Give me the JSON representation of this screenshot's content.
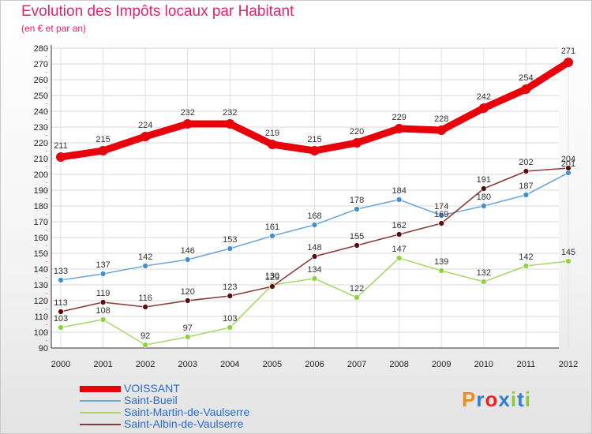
{
  "header": {
    "title": "Evolution des Impôts locaux par Habitant",
    "subtitle": "(en € et par an)"
  },
  "logo": {
    "text": "Proxiti",
    "letter_colors": [
      "#f08a1c",
      "#2f7fd8",
      "#e82525",
      "#2f7fd8",
      "#8cc63f",
      "#2f7fd8",
      "#8cc63f"
    ]
  },
  "chart_data": {
    "type": "line",
    "title": "Evolution des Impôts locaux par Habitant",
    "subtitle": "(en € et par an)",
    "xlabel": "",
    "ylabel": "",
    "x": [
      "2000",
      "2001",
      "2002",
      "2003",
      "2004",
      "2005",
      "2006",
      "2007",
      "2008",
      "2009",
      "2010",
      "2011",
      "2012"
    ],
    "ylim": [
      90,
      280
    ],
    "yticks": [
      90,
      100,
      110,
      120,
      130,
      140,
      150,
      160,
      170,
      180,
      190,
      200,
      210,
      220,
      230,
      240,
      250,
      260,
      270,
      280
    ],
    "grid": true,
    "legend_position": "bottom-left",
    "series": [
      {
        "name": "VOISSANT",
        "color": "#e8000b",
        "marker_color": "#e8000b",
        "emphasis": true,
        "values": [
          211,
          215,
          224,
          232,
          232,
          219,
          215,
          220,
          229,
          228,
          242,
          254,
          271
        ]
      },
      {
        "name": "Saint-Bueil",
        "color": "#6fa8d6",
        "marker_color": "#3f8fd2",
        "values": [
          133,
          137,
          142,
          146,
          153,
          161,
          168,
          178,
          184,
          174,
          180,
          187,
          201
        ]
      },
      {
        "name": "Saint-Martin-de-Vaulserre",
        "color": "#a8d86a",
        "marker_color": "#8cd43c",
        "values": [
          103,
          108,
          92,
          97,
          103,
          130,
          134,
          122,
          147,
          139,
          132,
          142,
          145
        ]
      },
      {
        "name": "Saint-Albin-de-Vaulserre",
        "color": "#8a3a3a",
        "marker_color": "#5a0d0d",
        "values": [
          113,
          119,
          116,
          120,
          123,
          129,
          148,
          155,
          162,
          169,
          191,
          202,
          204
        ]
      }
    ]
  }
}
